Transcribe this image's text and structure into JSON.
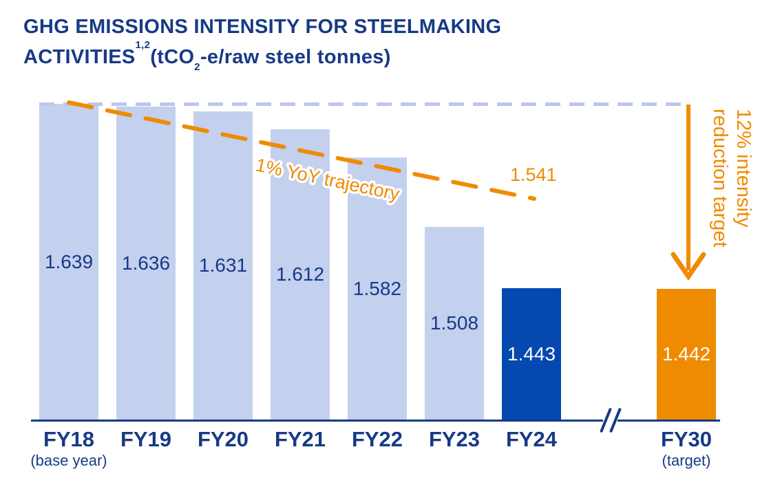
{
  "title": {
    "line1": "GHG EMISSIONS INTENSITY FOR STEELMAKING",
    "line2": {
      "prefix": "ACTIVITIES",
      "superscript": "1,2",
      "mid": "(tCO",
      "subscript": "2",
      "suffix": "-e/raw steel tonnes)"
    }
  },
  "palette": {
    "navy_text": "#173a85",
    "bar_light": "#c3d0ee",
    "bar_dark": "#0448b0",
    "orange": "#ef8b00",
    "dash_line": "#b9c7e9",
    "white_label": "#ffffff"
  },
  "chart_data": {
    "type": "bar",
    "title": "GHG EMISSIONS INTENSITY FOR STEELMAKING ACTIVITIES (tCO2-e/raw steel tonnes)",
    "categories": [
      "FY18",
      "FY19",
      "FY20",
      "FY21",
      "FY22",
      "FY23",
      "FY24",
      "FY30"
    ],
    "category_sublabels": [
      "(base year)",
      "",
      "",
      "",
      "",
      "",
      "",
      "(target)"
    ],
    "values": [
      1.639,
      1.636,
      1.631,
      1.612,
      1.582,
      1.508,
      1.443,
      1.442
    ],
    "value_labels": [
      "1.639",
      "1.636",
      "1.631",
      "1.612",
      "1.582",
      "1.508",
      "1.443",
      "1.442"
    ],
    "bar_roles": [
      "historical",
      "historical",
      "historical",
      "historical",
      "historical",
      "historical",
      "actual-latest",
      "target"
    ],
    "xlabel": "",
    "ylabel": "",
    "ylim": [
      1.3,
      1.65
    ],
    "grid": false,
    "legend": false,
    "axis_break_between": [
      "FY24",
      "FY30"
    ],
    "annotations": {
      "reference_line": {
        "value": 1.639,
        "style": "dashed",
        "meaning": "FY18 base level extended to FY30"
      },
      "trajectory": {
        "label": "1% YoY trajectory",
        "start_value": 1.639,
        "end_value": 1.541,
        "end_value_label": "1.541"
      },
      "reduction_arrow": {
        "line1": "12% intensity",
        "line2": "reduction target"
      },
      "axis_break_glyph": "//"
    }
  }
}
